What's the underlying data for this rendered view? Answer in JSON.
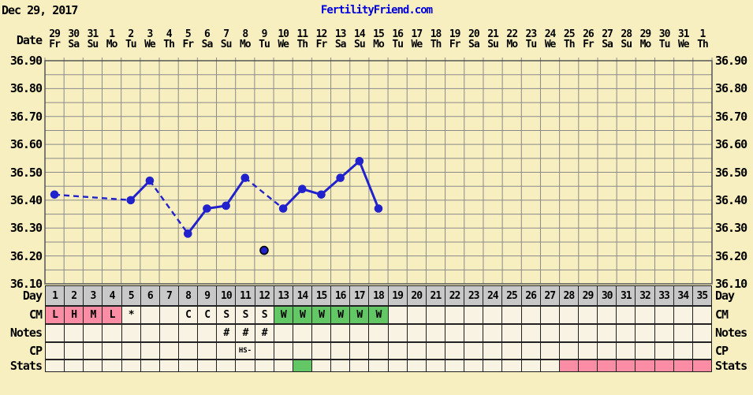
{
  "header": {
    "date": "Dec 29, 2017",
    "title": "FertilityFriend.com",
    "title_color": "#0000DD"
  },
  "axis": {
    "date_label": "Date",
    "dates": [
      "29",
      "30",
      "31",
      "1",
      "2",
      "3",
      "4",
      "5",
      "6",
      "7",
      "8",
      "9",
      "10",
      "11",
      "12",
      "13",
      "14",
      "15",
      "16",
      "17",
      "18",
      "19",
      "20",
      "21",
      "22",
      "23",
      "24",
      "25",
      "26",
      "27",
      "28",
      "29",
      "30",
      "31",
      "1"
    ],
    "weekdays": [
      "Fr",
      "Sa",
      "Su",
      "Mo",
      "Tu",
      "We",
      "Th",
      "Fr",
      "Sa",
      "Su",
      "Mo",
      "Tu",
      "We",
      "Th",
      "Fr",
      "Sa",
      "Su",
      "Mo",
      "Tu",
      "We",
      "Th",
      "Fr",
      "Sa",
      "Su",
      "Mo",
      "Tu",
      "We",
      "Th",
      "Fr",
      "Sa",
      "Su",
      "Mo",
      "Tu",
      "We",
      "Th"
    ],
    "temp_ticks": [
      "36.90",
      "36.80",
      "36.70",
      "36.60",
      "36.50",
      "36.40",
      "36.30",
      "36.20",
      "36.10"
    ]
  },
  "colors": {
    "background": "#F8EFC0",
    "cream": "#F9F3E3",
    "gray": "#C8C8C8",
    "pink": "#FA8CA3",
    "green": "#63C765",
    "grid": "#8A8A8A",
    "plot_border": "#555555",
    "line_blue": "#2222CC",
    "cell_border": "#222222"
  },
  "chart_data": {
    "type": "line",
    "x_axis": "cycle_day",
    "y_axis": "temperature_celsius",
    "ylim": [
      36.1,
      36.9
    ],
    "y_tick_step": 0.1,
    "y_minor_step": 0.05,
    "x_days": 35,
    "grid": "on",
    "points": [
      [
        1,
        36.42
      ],
      [
        5,
        36.4
      ],
      [
        6,
        36.47
      ],
      [
        8,
        36.28
      ],
      [
        9,
        36.37
      ],
      [
        10,
        36.38
      ],
      [
        11,
        36.48
      ],
      [
        13,
        36.37
      ],
      [
        14,
        36.44
      ],
      [
        15,
        36.42
      ],
      [
        16,
        36.48
      ],
      [
        17,
        36.54
      ],
      [
        18,
        36.37
      ]
    ],
    "discarded_points": [
      [
        12,
        36.22
      ]
    ],
    "solid_segments": [
      [
        5,
        6
      ],
      [
        8,
        9,
        10,
        11
      ],
      [
        13,
        14,
        15,
        16,
        17,
        18
      ]
    ],
    "dashed_segments": [
      [
        1,
        5
      ],
      [
        6,
        8
      ],
      [
        11,
        13
      ]
    ]
  },
  "table": {
    "rows": [
      {
        "label": "Day",
        "cells": [
          [
            "1",
            "gray"
          ],
          [
            "2",
            "gray"
          ],
          [
            "3",
            "gray"
          ],
          [
            "4",
            "gray"
          ],
          [
            "5",
            "gray"
          ],
          [
            "6",
            "gray"
          ],
          [
            "7",
            "gray"
          ],
          [
            "8",
            "gray"
          ],
          [
            "9",
            "gray"
          ],
          [
            "10",
            "gray"
          ],
          [
            "11",
            "gray"
          ],
          [
            "12",
            "gray"
          ],
          [
            "13",
            "gray"
          ],
          [
            "14",
            "gray"
          ],
          [
            "15",
            "gray"
          ],
          [
            "16",
            "gray"
          ],
          [
            "17",
            "gray"
          ],
          [
            "18",
            "gray"
          ],
          [
            "19",
            "gray"
          ],
          [
            "20",
            "gray"
          ],
          [
            "21",
            "gray"
          ],
          [
            "22",
            "gray"
          ],
          [
            "23",
            "gray"
          ],
          [
            "24",
            "gray"
          ],
          [
            "25",
            "gray"
          ],
          [
            "26",
            "gray"
          ],
          [
            "27",
            "gray"
          ],
          [
            "28",
            "gray"
          ],
          [
            "29",
            "gray"
          ],
          [
            "30",
            "gray"
          ],
          [
            "31",
            "gray"
          ],
          [
            "32",
            "gray"
          ],
          [
            "33",
            "gray"
          ],
          [
            "34",
            "gray"
          ],
          [
            "35",
            "gray"
          ]
        ]
      },
      {
        "label": "CM",
        "cells": [
          [
            "L",
            "pink"
          ],
          [
            "H",
            "pink"
          ],
          [
            "M",
            "pink"
          ],
          [
            "L",
            "pink"
          ],
          [
            "*",
            "cream"
          ],
          [
            "",
            "cream"
          ],
          [
            "",
            "cream"
          ],
          [
            "C",
            "cream"
          ],
          [
            "C",
            "cream"
          ],
          [
            "S",
            "cream"
          ],
          [
            "S",
            "cream"
          ],
          [
            "S",
            "cream"
          ],
          [
            "W",
            "green"
          ],
          [
            "W",
            "green"
          ],
          [
            "W",
            "green"
          ],
          [
            "W",
            "green"
          ],
          [
            "W",
            "green"
          ],
          [
            "W",
            "green"
          ],
          [
            "",
            "cream"
          ],
          [
            "",
            "cream"
          ],
          [
            "",
            "cream"
          ],
          [
            "",
            "cream"
          ],
          [
            "",
            "cream"
          ],
          [
            "",
            "cream"
          ],
          [
            "",
            "cream"
          ],
          [
            "",
            "cream"
          ],
          [
            "",
            "cream"
          ],
          [
            "",
            "cream"
          ],
          [
            "",
            "cream"
          ],
          [
            "",
            "cream"
          ],
          [
            "",
            "cream"
          ],
          [
            "",
            "cream"
          ],
          [
            "",
            "cream"
          ],
          [
            "",
            "cream"
          ],
          [
            "",
            "cream"
          ]
        ]
      },
      {
        "label": "Notes",
        "cells": [
          [
            "",
            "cream"
          ],
          [
            "",
            "cream"
          ],
          [
            "",
            "cream"
          ],
          [
            "",
            "cream"
          ],
          [
            "",
            "cream"
          ],
          [
            "",
            "cream"
          ],
          [
            "",
            "cream"
          ],
          [
            "",
            "cream"
          ],
          [
            "",
            "cream"
          ],
          [
            "#",
            "cream"
          ],
          [
            "#",
            "cream"
          ],
          [
            "#",
            "cream"
          ],
          [
            "",
            "cream"
          ],
          [
            "",
            "cream"
          ],
          [
            "",
            "cream"
          ],
          [
            "",
            "cream"
          ],
          [
            "",
            "cream"
          ],
          [
            "",
            "cream"
          ],
          [
            "",
            "cream"
          ],
          [
            "",
            "cream"
          ],
          [
            "",
            "cream"
          ],
          [
            "",
            "cream"
          ],
          [
            "",
            "cream"
          ],
          [
            "",
            "cream"
          ],
          [
            "",
            "cream"
          ],
          [
            "",
            "cream"
          ],
          [
            "",
            "cream"
          ],
          [
            "",
            "cream"
          ],
          [
            "",
            "cream"
          ],
          [
            "",
            "cream"
          ],
          [
            "",
            "cream"
          ],
          [
            "",
            "cream"
          ],
          [
            "",
            "cream"
          ],
          [
            "",
            "cream"
          ],
          [
            "",
            "cream"
          ]
        ]
      },
      {
        "label": "CP",
        "cells": [
          [
            "",
            "cream"
          ],
          [
            "",
            "cream"
          ],
          [
            "",
            "cream"
          ],
          [
            "",
            "cream"
          ],
          [
            "",
            "cream"
          ],
          [
            "",
            "cream"
          ],
          [
            "",
            "cream"
          ],
          [
            "",
            "cream"
          ],
          [
            "",
            "cream"
          ],
          [
            "",
            "cream"
          ],
          [
            "HS-",
            "cream"
          ],
          [
            "",
            "cream"
          ],
          [
            "",
            "cream"
          ],
          [
            "",
            "cream"
          ],
          [
            "",
            "cream"
          ],
          [
            "",
            "cream"
          ],
          [
            "",
            "cream"
          ],
          [
            "",
            "cream"
          ],
          [
            "",
            "cream"
          ],
          [
            "",
            "cream"
          ],
          [
            "",
            "cream"
          ],
          [
            "",
            "cream"
          ],
          [
            "",
            "cream"
          ],
          [
            "",
            "cream"
          ],
          [
            "",
            "cream"
          ],
          [
            "",
            "cream"
          ],
          [
            "",
            "cream"
          ],
          [
            "",
            "cream"
          ],
          [
            "",
            "cream"
          ],
          [
            "",
            "cream"
          ],
          [
            "",
            "cream"
          ],
          [
            "",
            "cream"
          ],
          [
            "",
            "cream"
          ],
          [
            "",
            "cream"
          ],
          [
            "",
            "cream"
          ]
        ]
      },
      {
        "label": "Stats",
        "cells": [
          [
            "",
            "cream"
          ],
          [
            "",
            "cream"
          ],
          [
            "",
            "cream"
          ],
          [
            "",
            "cream"
          ],
          [
            "",
            "cream"
          ],
          [
            "",
            "cream"
          ],
          [
            "",
            "cream"
          ],
          [
            "",
            "cream"
          ],
          [
            "",
            "cream"
          ],
          [
            "",
            "cream"
          ],
          [
            "",
            "cream"
          ],
          [
            "",
            "cream"
          ],
          [
            "",
            "cream"
          ],
          [
            "",
            "green"
          ],
          [
            "",
            "cream"
          ],
          [
            "",
            "cream"
          ],
          [
            "",
            "cream"
          ],
          [
            "",
            "cream"
          ],
          [
            "",
            "cream"
          ],
          [
            "",
            "cream"
          ],
          [
            "",
            "cream"
          ],
          [
            "",
            "cream"
          ],
          [
            "",
            "cream"
          ],
          [
            "",
            "cream"
          ],
          [
            "",
            "cream"
          ],
          [
            "",
            "cream"
          ],
          [
            "",
            "cream"
          ],
          [
            "",
            "pink"
          ],
          [
            "",
            "pink"
          ],
          [
            "",
            "pink"
          ],
          [
            "",
            "pink"
          ],
          [
            "",
            "pink"
          ],
          [
            "",
            "pink"
          ],
          [
            "",
            "pink"
          ],
          [
            "",
            "pink"
          ]
        ]
      }
    ]
  }
}
